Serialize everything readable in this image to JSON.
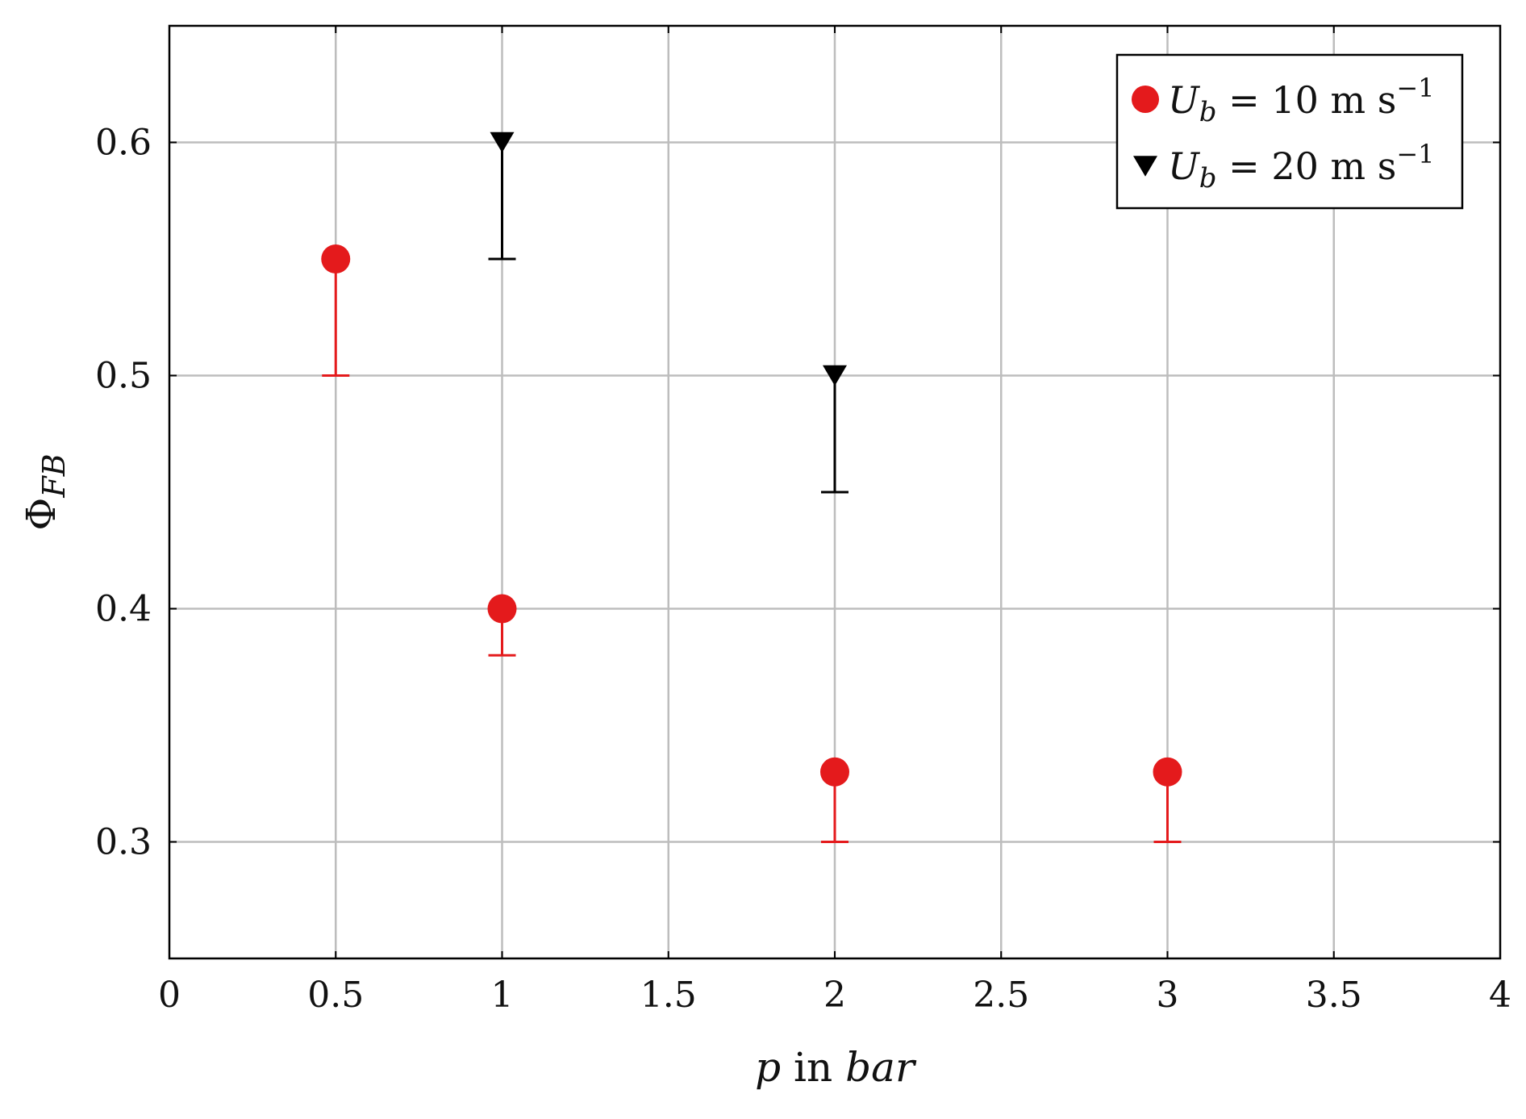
{
  "chart_data": {
    "type": "scatter",
    "xlim": [
      0,
      4
    ],
    "ylim": [
      0.25,
      0.65
    ],
    "x_ticks": [
      "0",
      "0.5",
      "1",
      "1.5",
      "2",
      "2.5",
      "3",
      "3.5",
      "4"
    ],
    "y_ticks": [
      "0.3",
      "0.4",
      "0.5",
      "0.6"
    ],
    "grid": true,
    "legend_position": "top-right",
    "xlabel": {
      "var": "p",
      "mid": " in ",
      "unit": "bar"
    },
    "ylabel": {
      "sym": "Φ",
      "sub": "FB"
    },
    "series": [
      {
        "name": "U_b = 10 m s^-1",
        "legend": {
          "var": "U",
          "sub": "b",
          "rest": " = 10 m s",
          "exp": "−1"
        },
        "marker": "circle",
        "color": "#e41a1c",
        "points": [
          {
            "x": 0.5,
            "y": 0.55,
            "err_low": 0.5
          },
          {
            "x": 1.0,
            "y": 0.4,
            "err_low": 0.38
          },
          {
            "x": 2.0,
            "y": 0.33,
            "err_low": 0.3
          },
          {
            "x": 3.0,
            "y": 0.33,
            "err_low": 0.3
          }
        ]
      },
      {
        "name": "U_b = 20 m s^-1",
        "legend": {
          "var": "U",
          "sub": "b",
          "rest": " = 20 m s",
          "exp": "−1"
        },
        "marker": "triangle-down",
        "color": "#000000",
        "points": [
          {
            "x": 1.0,
            "y": 0.6,
            "err_low": 0.55
          },
          {
            "x": 2.0,
            "y": 0.5,
            "err_low": 0.45
          }
        ]
      }
    ]
  }
}
